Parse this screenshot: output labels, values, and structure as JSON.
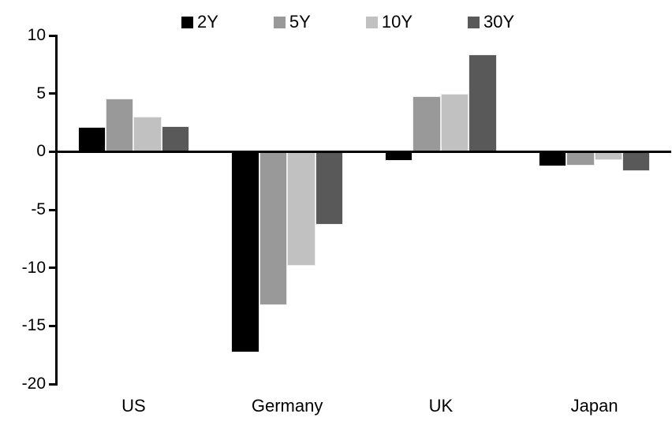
{
  "chart_data": {
    "type": "bar",
    "title": "",
    "categories": [
      "US",
      "Germany",
      "UK",
      "Japan"
    ],
    "series": [
      {
        "name": "2Y",
        "color": "#000000",
        "values": [
          2.1,
          -17.3,
          -0.8,
          -1.3
        ]
      },
      {
        "name": "5Y",
        "color": "#999999",
        "values": [
          4.6,
          -13.2,
          4.8,
          -1.2
        ]
      },
      {
        "name": "10Y",
        "color": "#c1c1c1",
        "values": [
          3.0,
          -9.8,
          5.0,
          -0.7
        ]
      },
      {
        "name": "30Y",
        "color": "#595959",
        "values": [
          2.2,
          -6.3,
          8.4,
          -1.7
        ]
      }
    ],
    "ylim": [
      -20,
      10
    ],
    "yticks": [
      10,
      5,
      0,
      -5,
      -10,
      -15,
      -20
    ],
    "xlabel": "",
    "ylabel": "",
    "grid": false,
    "legend_position": "top"
  }
}
